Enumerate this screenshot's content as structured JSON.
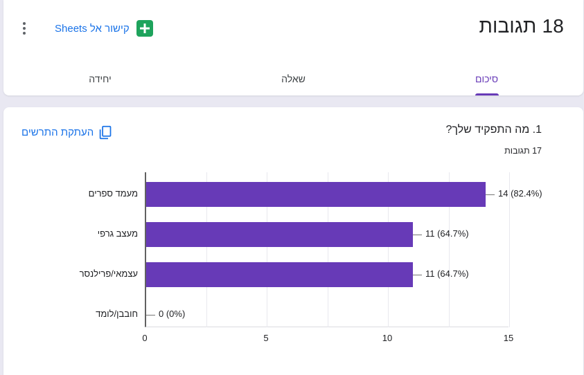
{
  "header": {
    "title": "18 תגובות",
    "sheets_link_label": "קישור אל Sheets"
  },
  "tabs": {
    "summary": "סיכום",
    "question": "שאלה",
    "individual": "יחידה"
  },
  "question": {
    "copy_chart_label": "העתקת התרשים",
    "title": "1. מה התפקיד שלך?",
    "responses_label": "17 תגובות"
  },
  "chart_data": {
    "type": "bar",
    "orientation": "horizontal",
    "categories": [
      "מעמד ספרים",
      "מעצב גרפי",
      "עצמאי/פרילנסר",
      "חובבן/לומד"
    ],
    "values": [
      14,
      11,
      11,
      0
    ],
    "value_labels": [
      "14 (82.4%)",
      "11 (64.7%)",
      "11 (64.7%)",
      "0 (0%)"
    ],
    "xlim": [
      0,
      15
    ],
    "x_ticks": [
      0,
      5,
      10,
      15
    ],
    "minor_grid_step": 2.5,
    "bar_color": "#673ab7",
    "grid": true,
    "legend": "none"
  },
  "colors": {
    "accent_purple": "#673ab7",
    "link_blue": "#1a73e8",
    "sheets_green": "#1ea35c",
    "page_bg": "#e9e8f2",
    "text_primary": "#202124"
  }
}
